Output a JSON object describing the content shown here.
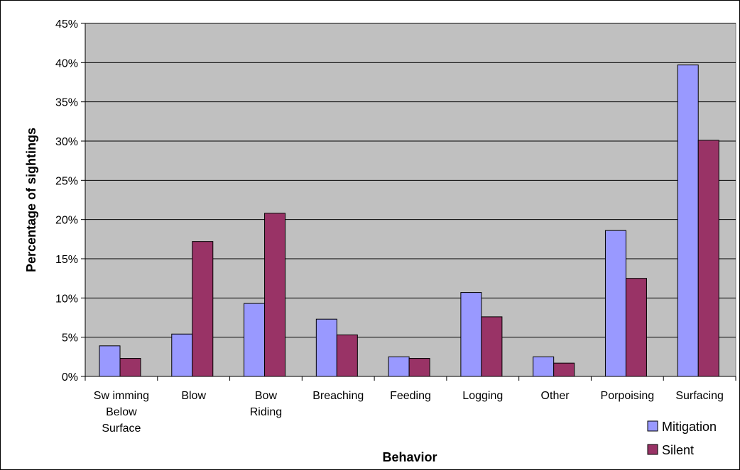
{
  "chart_data": {
    "type": "bar",
    "title": "",
    "xlabel": "Behavior",
    "ylabel": "Percentage of sightings",
    "categories": [
      [
        "Sw imming",
        "Below",
        "Surface"
      ],
      [
        "Blow"
      ],
      [
        "Bow",
        "Riding"
      ],
      [
        "Breaching"
      ],
      [
        "Feeding"
      ],
      [
        "Logging"
      ],
      [
        "Other"
      ],
      [
        "Porpoising"
      ],
      [
        "Surfacing"
      ]
    ],
    "series": [
      {
        "name": "Mitigation",
        "color": "#9999ff",
        "values": [
          3.9,
          5.4,
          9.3,
          7.3,
          2.5,
          10.7,
          2.5,
          18.6,
          39.7
        ]
      },
      {
        "name": "Silent",
        "color": "#993366",
        "values": [
          2.3,
          17.2,
          20.8,
          5.3,
          2.3,
          7.6,
          1.7,
          12.5,
          30.1
        ]
      }
    ],
    "ylim": [
      0,
      45
    ],
    "y_ticks": [
      0,
      5,
      10,
      15,
      20,
      25,
      30,
      35,
      40,
      45
    ],
    "y_tick_format": "percent",
    "grid": true,
    "plot_background": "#c0c0c0",
    "legend_position": "bottom-right"
  }
}
